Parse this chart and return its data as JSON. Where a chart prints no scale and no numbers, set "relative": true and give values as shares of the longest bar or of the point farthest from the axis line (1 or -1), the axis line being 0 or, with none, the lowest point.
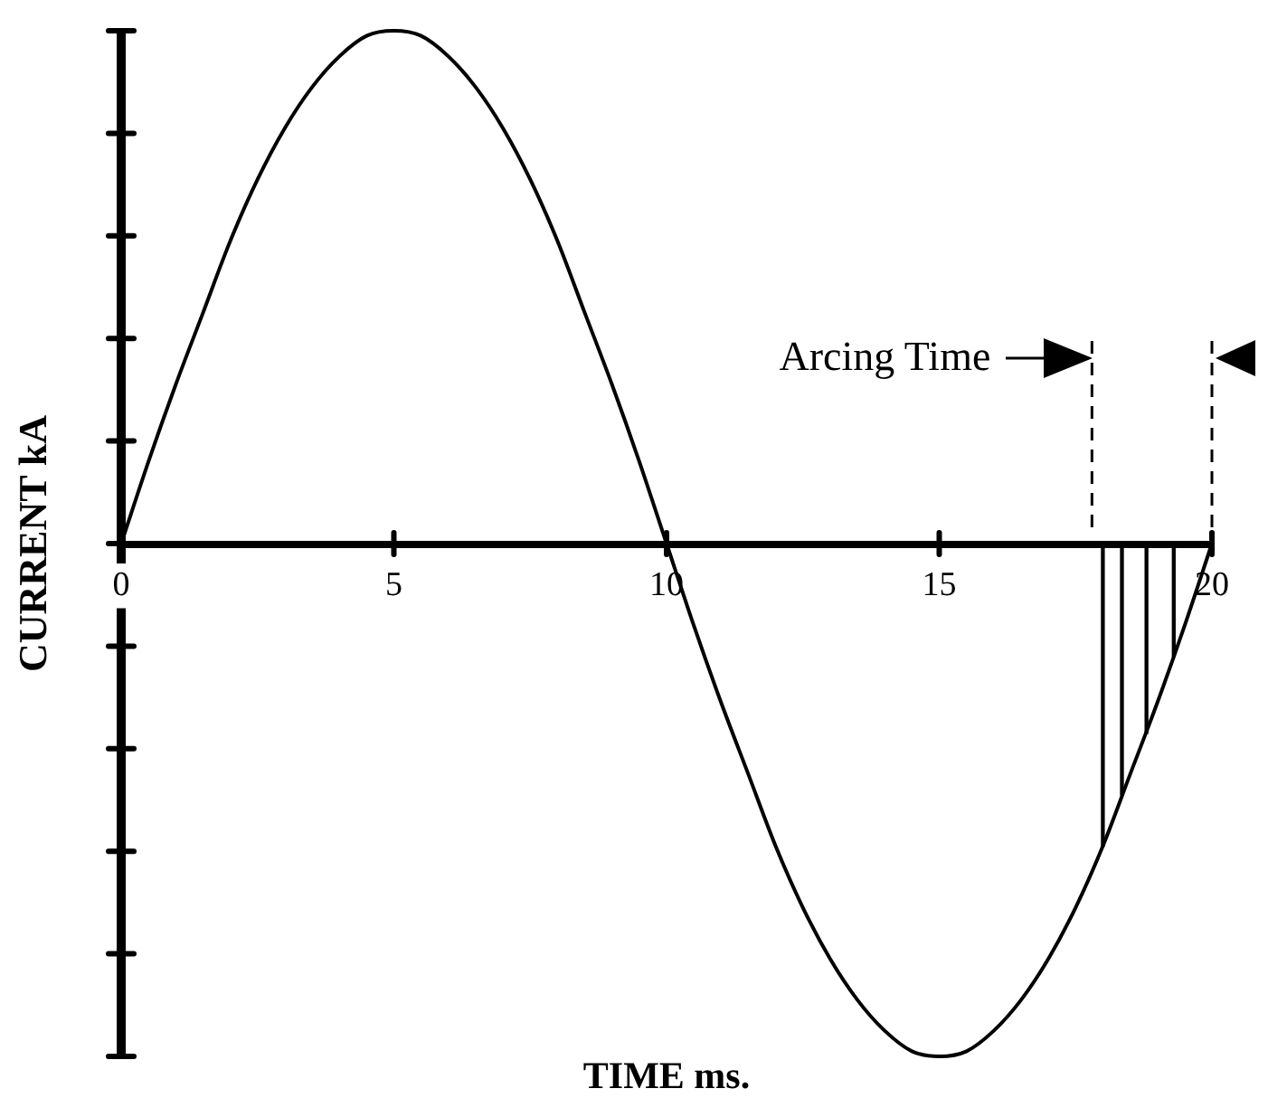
{
  "chart_data": {
    "type": "line",
    "xlabel": "TIME ms.",
    "ylabel": "CURRENT kA",
    "relative": true,
    "xlim": [
      0,
      20
    ],
    "xticks": [
      0,
      5,
      10,
      15,
      20
    ],
    "series": [
      {
        "color": "#000000",
        "x": [
          0,
          0.5,
          1,
          1.5,
          2,
          2.5,
          3,
          3.5,
          4,
          4.5,
          5,
          5.5,
          6,
          6.5,
          7,
          7.5,
          8,
          8.5,
          9,
          9.5,
          10,
          10.5,
          11,
          11.5,
          12,
          12.5,
          13,
          13.5,
          14,
          14.5,
          15,
          15.5,
          16,
          16.5,
          17,
          17.5,
          18,
          18.5,
          19,
          19.5,
          20
        ],
        "values": [
          0,
          0.16,
          0.31,
          0.45,
          0.59,
          0.71,
          0.81,
          0.89,
          0.95,
          0.99,
          1,
          0.99,
          0.95,
          0.89,
          0.81,
          0.71,
          0.59,
          0.45,
          0.31,
          0.16,
          0,
          -0.16,
          -0.31,
          -0.45,
          -0.59,
          -0.71,
          -0.81,
          -0.89,
          -0.95,
          -0.99,
          -1,
          -0.99,
          -0.95,
          -0.89,
          -0.81,
          -0.71,
          -0.59,
          -0.45,
          -0.31,
          -0.16,
          0
        ]
      },
      {
        "type": "bar",
        "color": "#000000",
        "x": [
          18,
          18.35,
          18.8,
          19.3
        ],
        "values": [
          -0.59,
          -0.49,
          -0.37,
          -0.22
        ]
      }
    ],
    "ref_lines": [
      {
        "axis": "x",
        "value": 17.8,
        "line_style": "dashed",
        "color": "#000000"
      },
      {
        "axis": "x",
        "value": 20,
        "line_style": "dashed",
        "color": "#000000"
      }
    ],
    "annotations": [
      {
        "text": "Arcing Time",
        "x": 17.8,
        "y": 0.36
      }
    ]
  }
}
